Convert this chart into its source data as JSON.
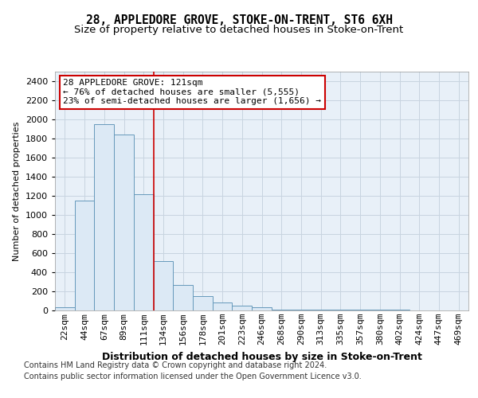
{
  "title": "28, APPLEDORE GROVE, STOKE-ON-TRENT, ST6 6XH",
  "subtitle": "Size of property relative to detached houses in Stoke-on-Trent",
  "xlabel": "Distribution of detached houses by size in Stoke-on-Trent",
  "ylabel": "Number of detached properties",
  "categories": [
    "22sqm",
    "44sqm",
    "67sqm",
    "89sqm",
    "111sqm",
    "134sqm",
    "156sqm",
    "178sqm",
    "201sqm",
    "223sqm",
    "246sqm",
    "268sqm",
    "290sqm",
    "313sqm",
    "335sqm",
    "357sqm",
    "380sqm",
    "402sqm",
    "424sqm",
    "447sqm",
    "469sqm"
  ],
  "values": [
    30,
    1150,
    1950,
    1840,
    1220,
    520,
    270,
    150,
    80,
    50,
    30,
    10,
    8,
    5,
    5,
    5,
    5,
    5,
    0,
    0,
    0
  ],
  "bar_color": "#dce9f5",
  "bar_edge_color": "#6699bb",
  "vline_x": 4.5,
  "vline_color": "#cc0000",
  "annotation_text": "28 APPLEDORE GROVE: 121sqm\n← 76% of detached houses are smaller (5,555)\n23% of semi-detached houses are larger (1,656) →",
  "annotation_box_color": "#ffffff",
  "annotation_box_edge": "#cc0000",
  "ylim": [
    0,
    2500
  ],
  "yticks": [
    0,
    200,
    400,
    600,
    800,
    1000,
    1200,
    1400,
    1600,
    1800,
    2000,
    2200,
    2400
  ],
  "footer1": "Contains HM Land Registry data © Crown copyright and database right 2024.",
  "footer2": "Contains public sector information licensed under the Open Government Licence v3.0.",
  "bg_color": "#ffffff",
  "plot_bg_color": "#e8f0f8",
  "title_fontsize": 10.5,
  "subtitle_fontsize": 9.5,
  "xlabel_fontsize": 9,
  "ylabel_fontsize": 8,
  "tick_fontsize": 8,
  "footer_fontsize": 7,
  "grid_color": "#c8d4e0"
}
